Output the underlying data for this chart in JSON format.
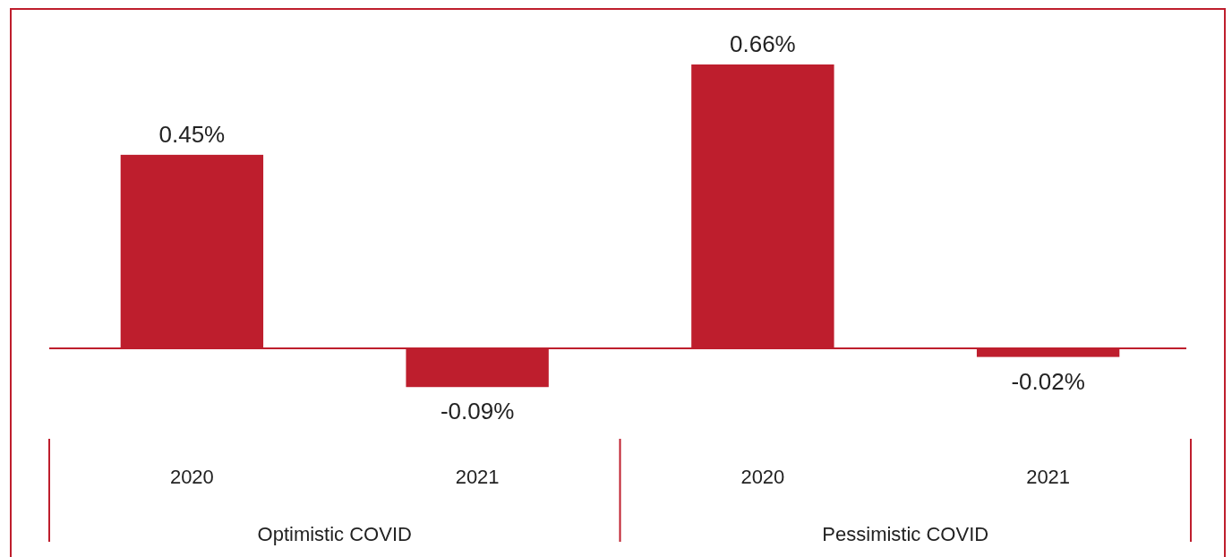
{
  "chart_data": {
    "type": "bar",
    "categories": [
      "2020",
      "2021",
      "2020",
      "2021"
    ],
    "values": [
      0.45,
      -0.09,
      0.66,
      -0.02
    ],
    "value_labels": [
      "0.45%",
      "-0.09%",
      "0.66%",
      "-0.02%"
    ],
    "color": "#be1e2d",
    "annotations": [
      "Optimistic COVID",
      "Pessimistic COVID"
    ],
    "ref_lines": [
      {
        "axis": "y",
        "value": 0,
        "color": "#be1e2d"
      }
    ],
    "grid": false
  }
}
